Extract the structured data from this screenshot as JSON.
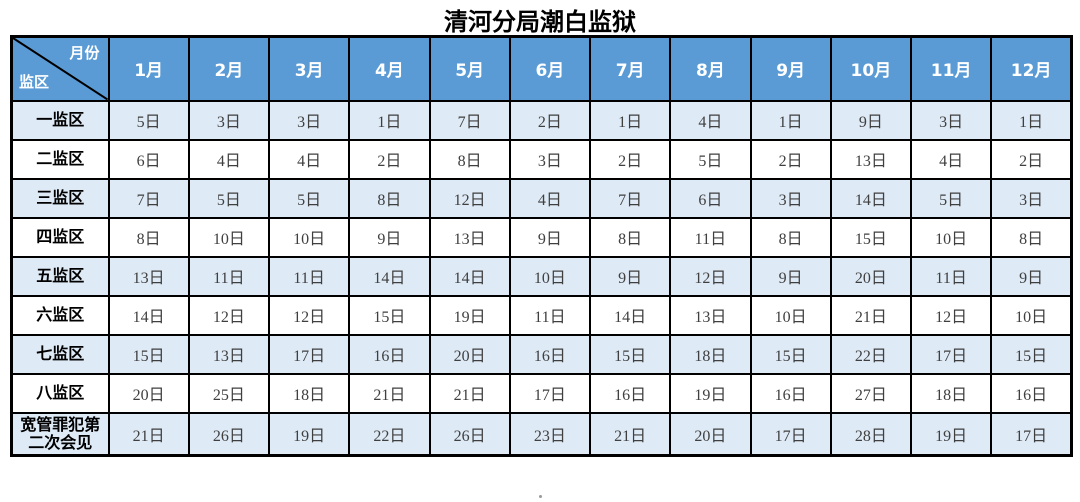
{
  "title": "清河分局潮白监狱",
  "colors": {
    "header_bg": "#5B9BD5",
    "band_bg": "#DEEAF6",
    "border": "#000000",
    "data_text": "#3F3F3F",
    "label_text": "#000000"
  },
  "table": {
    "corner": {
      "top_right": "月份",
      "bottom_left": "监区"
    },
    "months": [
      "1月",
      "2月",
      "3月",
      "4月",
      "5月",
      "6月",
      "7月",
      "8月",
      "9月",
      "10月",
      "11月",
      "12月"
    ],
    "rows": [
      {
        "label": "一监区",
        "values": [
          "5日",
          "3日",
          "3日",
          "1日",
          "7日",
          "2日",
          "1日",
          "4日",
          "1日",
          "9日",
          "3日",
          "1日"
        ]
      },
      {
        "label": "二监区",
        "values": [
          "6日",
          "4日",
          "4日",
          "2日",
          "8日",
          "3日",
          "2日",
          "5日",
          "2日",
          "13日",
          "4日",
          "2日"
        ]
      },
      {
        "label": "三监区",
        "values": [
          "7日",
          "5日",
          "5日",
          "8日",
          "12日",
          "4日",
          "7日",
          "6日",
          "3日",
          "14日",
          "5日",
          "3日"
        ]
      },
      {
        "label": "四监区",
        "values": [
          "8日",
          "10日",
          "10日",
          "9日",
          "13日",
          "9日",
          "8日",
          "11日",
          "8日",
          "15日",
          "10日",
          "8日"
        ]
      },
      {
        "label": "五监区",
        "values": [
          "13日",
          "11日",
          "11日",
          "14日",
          "14日",
          "10日",
          "9日",
          "12日",
          "9日",
          "20日",
          "11日",
          "9日"
        ]
      },
      {
        "label": "六监区",
        "values": [
          "14日",
          "12日",
          "12日",
          "15日",
          "19日",
          "11日",
          "14日",
          "13日",
          "10日",
          "21日",
          "12日",
          "10日"
        ]
      },
      {
        "label": "七监区",
        "values": [
          "15日",
          "13日",
          "17日",
          "16日",
          "20日",
          "16日",
          "15日",
          "18日",
          "15日",
          "22日",
          "17日",
          "15日"
        ]
      },
      {
        "label": "八监区",
        "values": [
          "20日",
          "25日",
          "18日",
          "21日",
          "21日",
          "17日",
          "16日",
          "19日",
          "16日",
          "27日",
          "18日",
          "16日"
        ]
      },
      {
        "label": "宽管罪犯第二次会见",
        "values": [
          "21日",
          "26日",
          "19日",
          "22日",
          "26日",
          "23日",
          "21日",
          "20日",
          "17日",
          "28日",
          "19日",
          "17日"
        ]
      }
    ]
  }
}
